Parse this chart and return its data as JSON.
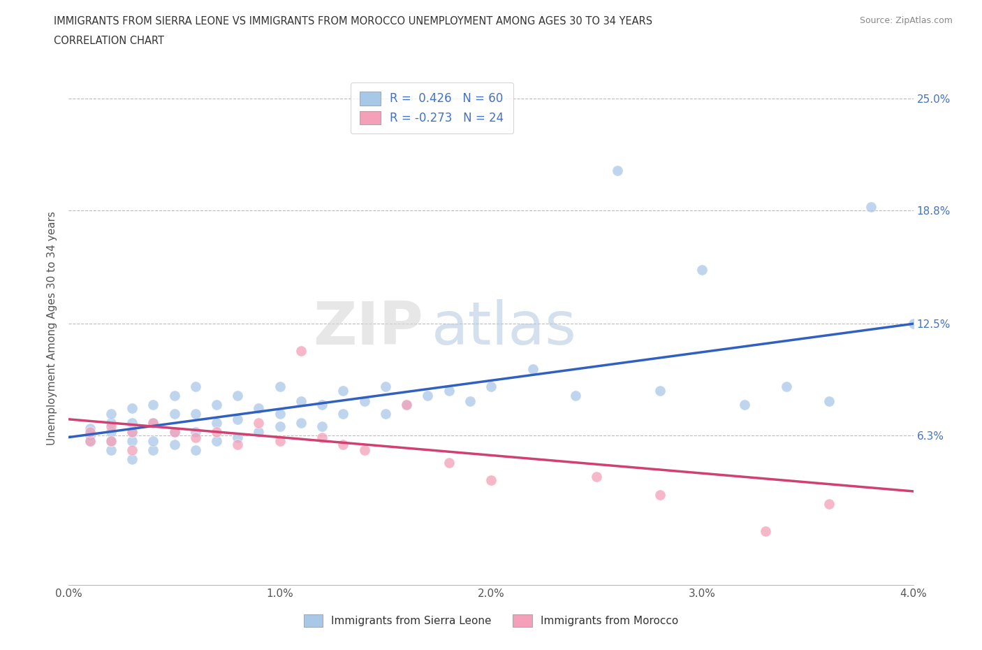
{
  "title_line1": "IMMIGRANTS FROM SIERRA LEONE VS IMMIGRANTS FROM MOROCCO UNEMPLOYMENT AMONG AGES 30 TO 34 YEARS",
  "title_line2": "CORRELATION CHART",
  "source_text": "Source: ZipAtlas.com",
  "ylabel": "Unemployment Among Ages 30 to 34 years",
  "legend_label_blue": "Immigrants from Sierra Leone",
  "legend_label_pink": "Immigrants from Morocco",
  "R_blue": 0.426,
  "N_blue": 60,
  "R_pink": -0.273,
  "N_pink": 24,
  "x_min": 0.0,
  "x_max": 0.04,
  "y_min": -0.02,
  "y_max": 0.265,
  "y_ticks": [
    0.063,
    0.125,
    0.188,
    0.25
  ],
  "y_tick_labels": [
    "6.3%",
    "12.5%",
    "18.8%",
    "25.0%"
  ],
  "x_ticks": [
    0.0,
    0.01,
    0.02,
    0.03,
    0.04
  ],
  "x_tick_labels": [
    "0.0%",
    "1.0%",
    "2.0%",
    "3.0%",
    "4.0%"
  ],
  "color_blue": "#A8C8E8",
  "color_pink": "#F4A0B8",
  "color_line_blue": "#3060C0",
  "color_line_pink": "#D04070",
  "watermark_zip": "ZIP",
  "watermark_atlas": "atlas",
  "blue_scatter_x": [
    0.001,
    0.001,
    0.001,
    0.002,
    0.002,
    0.002,
    0.002,
    0.002,
    0.003,
    0.003,
    0.003,
    0.003,
    0.003,
    0.004,
    0.004,
    0.004,
    0.004,
    0.005,
    0.005,
    0.005,
    0.005,
    0.006,
    0.006,
    0.006,
    0.006,
    0.007,
    0.007,
    0.007,
    0.008,
    0.008,
    0.008,
    0.009,
    0.009,
    0.01,
    0.01,
    0.01,
    0.011,
    0.011,
    0.012,
    0.012,
    0.013,
    0.013,
    0.014,
    0.015,
    0.015,
    0.016,
    0.017,
    0.018,
    0.019,
    0.02,
    0.022,
    0.024,
    0.026,
    0.028,
    0.03,
    0.032,
    0.034,
    0.036,
    0.038,
    0.04
  ],
  "blue_scatter_y": [
    0.06,
    0.063,
    0.067,
    0.055,
    0.06,
    0.065,
    0.07,
    0.075,
    0.05,
    0.06,
    0.065,
    0.07,
    0.078,
    0.055,
    0.06,
    0.07,
    0.08,
    0.058,
    0.065,
    0.075,
    0.085,
    0.055,
    0.065,
    0.075,
    0.09,
    0.06,
    0.07,
    0.08,
    0.062,
    0.072,
    0.085,
    0.065,
    0.078,
    0.068,
    0.075,
    0.09,
    0.07,
    0.082,
    0.068,
    0.08,
    0.075,
    0.088,
    0.082,
    0.075,
    0.09,
    0.08,
    0.085,
    0.088,
    0.082,
    0.09,
    0.1,
    0.085,
    0.21,
    0.088,
    0.155,
    0.08,
    0.09,
    0.082,
    0.19,
    0.125
  ],
  "pink_scatter_x": [
    0.001,
    0.001,
    0.002,
    0.002,
    0.003,
    0.003,
    0.004,
    0.005,
    0.006,
    0.007,
    0.008,
    0.009,
    0.01,
    0.011,
    0.012,
    0.013,
    0.014,
    0.016,
    0.018,
    0.02,
    0.025,
    0.028,
    0.033,
    0.036
  ],
  "pink_scatter_y": [
    0.06,
    0.065,
    0.06,
    0.068,
    0.055,
    0.065,
    0.07,
    0.065,
    0.062,
    0.065,
    0.058,
    0.07,
    0.06,
    0.11,
    0.062,
    0.058,
    0.055,
    0.08,
    0.048,
    0.038,
    0.04,
    0.03,
    0.01,
    0.025
  ],
  "blue_trendline_x": [
    0.0,
    0.04
  ],
  "blue_trendline_y": [
    0.062,
    0.125
  ],
  "pink_trendline_x": [
    0.0,
    0.04
  ],
  "pink_trendline_y": [
    0.072,
    0.032
  ]
}
